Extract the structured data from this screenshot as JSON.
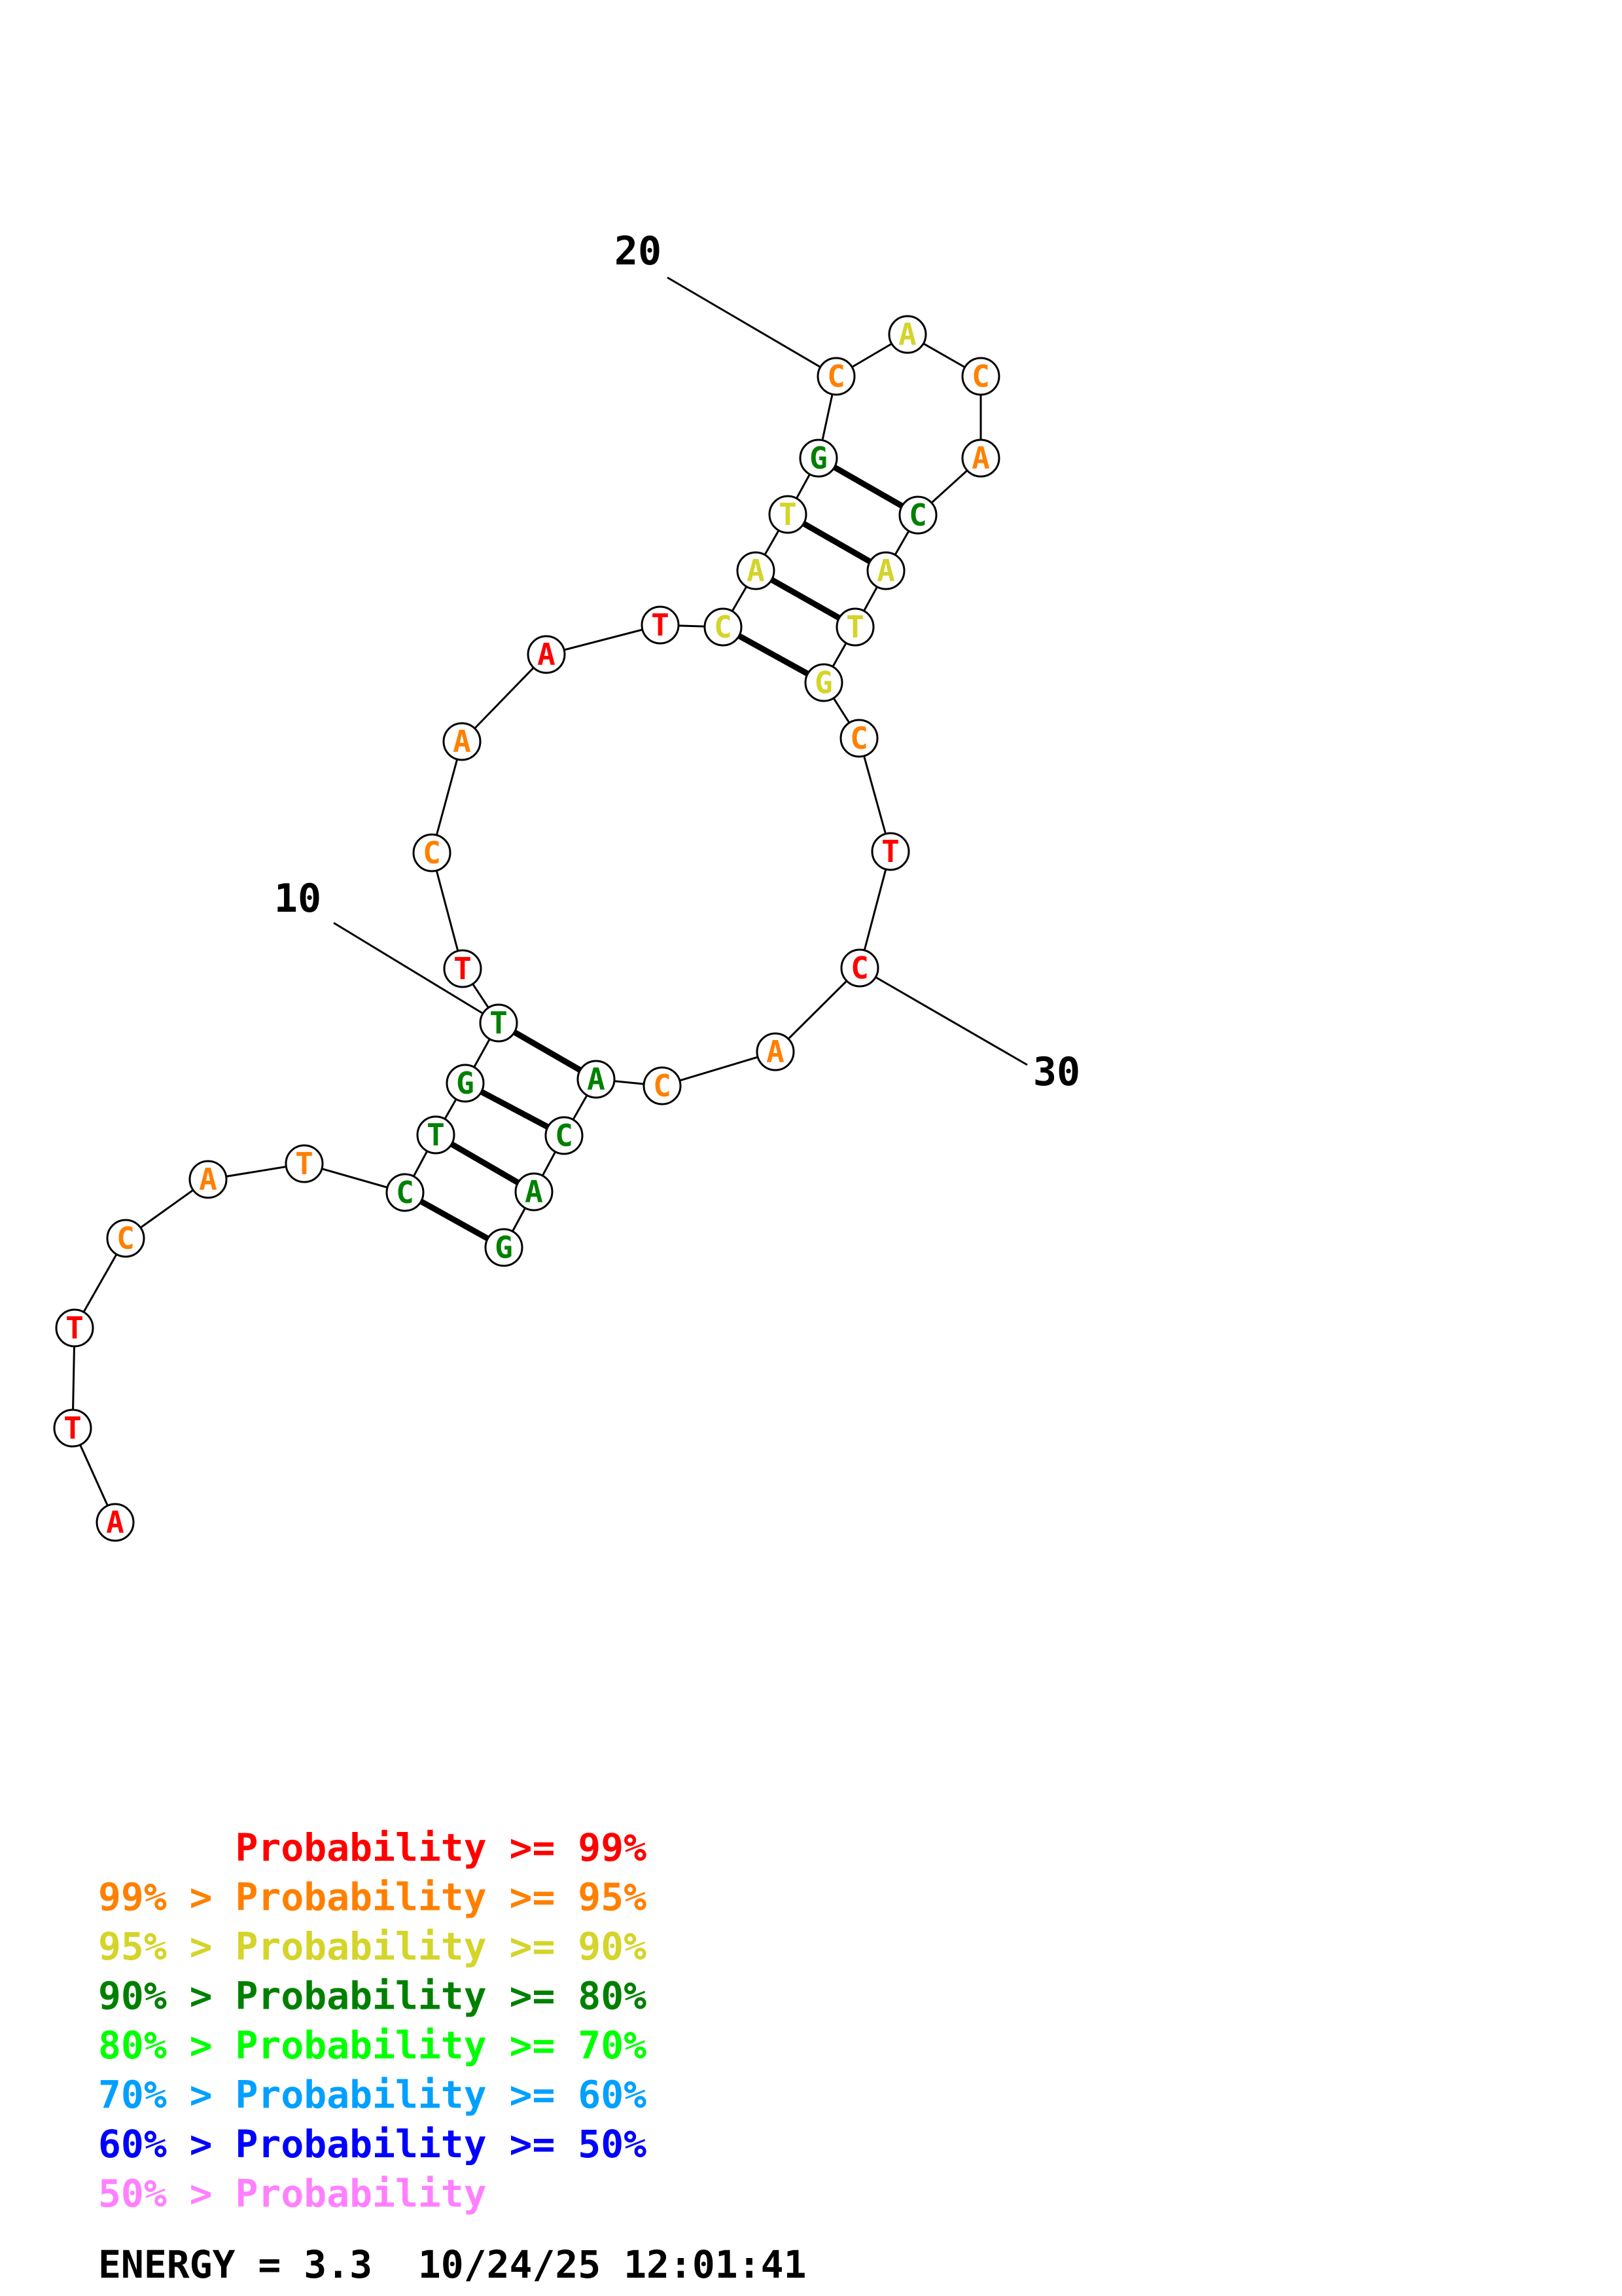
{
  "colors": {
    "p99": "#ff0000",
    "p95": "#ff8000",
    "p90": "#d4d42a",
    "p80": "#008000",
    "p70": "#00ff00",
    "p60": "#00a0ff",
    "p50": "#0000ff",
    "plow": "#ff80ff"
  },
  "sequence": [
    {
      "n": 1,
      "base": "A",
      "prob": "p99"
    },
    {
      "n": 2,
      "base": "T",
      "prob": "p99"
    },
    {
      "n": 3,
      "base": "T",
      "prob": "p99"
    },
    {
      "n": 4,
      "base": "C",
      "prob": "p95"
    },
    {
      "n": 5,
      "base": "A",
      "prob": "p95"
    },
    {
      "n": 6,
      "base": "T",
      "prob": "p95"
    },
    {
      "n": 7,
      "base": "C",
      "prob": "p80"
    },
    {
      "n": 8,
      "base": "T",
      "prob": "p80"
    },
    {
      "n": 9,
      "base": "G",
      "prob": "p80"
    },
    {
      "n": 10,
      "base": "T",
      "prob": "p80"
    },
    {
      "n": 11,
      "base": "T",
      "prob": "p99"
    },
    {
      "n": 12,
      "base": "C",
      "prob": "p95"
    },
    {
      "n": 13,
      "base": "A",
      "prob": "p95"
    },
    {
      "n": 14,
      "base": "A",
      "prob": "p99"
    },
    {
      "n": 15,
      "base": "T",
      "prob": "p99"
    },
    {
      "n": 16,
      "base": "C",
      "prob": "p90"
    },
    {
      "n": 17,
      "base": "A",
      "prob": "p90"
    },
    {
      "n": 18,
      "base": "T",
      "prob": "p90"
    },
    {
      "n": 19,
      "base": "G",
      "prob": "p80"
    },
    {
      "n": 20,
      "base": "C",
      "prob": "p95"
    },
    {
      "n": 21,
      "base": "A",
      "prob": "p90"
    },
    {
      "n": 22,
      "base": "C",
      "prob": "p95"
    },
    {
      "n": 23,
      "base": "A",
      "prob": "p95"
    },
    {
      "n": 24,
      "base": "C",
      "prob": "p80"
    },
    {
      "n": 25,
      "base": "A",
      "prob": "p90"
    },
    {
      "n": 26,
      "base": "T",
      "prob": "p90"
    },
    {
      "n": 27,
      "base": "G",
      "prob": "p90"
    },
    {
      "n": 28,
      "base": "C",
      "prob": "p95"
    },
    {
      "n": 29,
      "base": "T",
      "prob": "p99"
    },
    {
      "n": 30,
      "base": "C",
      "prob": "p99"
    },
    {
      "n": 31,
      "base": "A",
      "prob": "p95"
    },
    {
      "n": 32,
      "base": "C",
      "prob": "p95"
    },
    {
      "n": 33,
      "base": "A",
      "prob": "p80"
    },
    {
      "n": 34,
      "base": "C",
      "prob": "p80"
    },
    {
      "n": 35,
      "base": "A",
      "prob": "p80"
    },
    {
      "n": 36,
      "base": "G",
      "prob": "p80"
    }
  ],
  "pairs": [
    [
      7,
      36
    ],
    [
      8,
      35
    ],
    [
      9,
      34
    ],
    [
      10,
      33
    ],
    [
      16,
      27
    ],
    [
      17,
      26
    ],
    [
      18,
      25
    ],
    [
      19,
      24
    ]
  ],
  "index_labels": [
    {
      "n": 10,
      "text": "10"
    },
    {
      "n": 20,
      "text": "20"
    },
    {
      "n": 30,
      "text": "30"
    }
  ],
  "legend": [
    {
      "text": "      Probability >= 99%",
      "prob": "p99"
    },
    {
      "text": "99% > Probability >= 95%",
      "prob": "p95"
    },
    {
      "text": "95% > Probability >= 90%",
      "prob": "p90"
    },
    {
      "text": "90% > Probability >= 80%",
      "prob": "p80"
    },
    {
      "text": "80% > Probability >= 70%",
      "prob": "p70"
    },
    {
      "text": "70% > Probability >= 60%",
      "prob": "p60"
    },
    {
      "text": "60% > Probability >= 50%",
      "prob": "p50"
    },
    {
      "text": "50% > Probability",
      "prob": "plow"
    }
  ],
  "footer": {
    "energy": "ENERGY = 3.3  10/24/25 12:01:41"
  }
}
